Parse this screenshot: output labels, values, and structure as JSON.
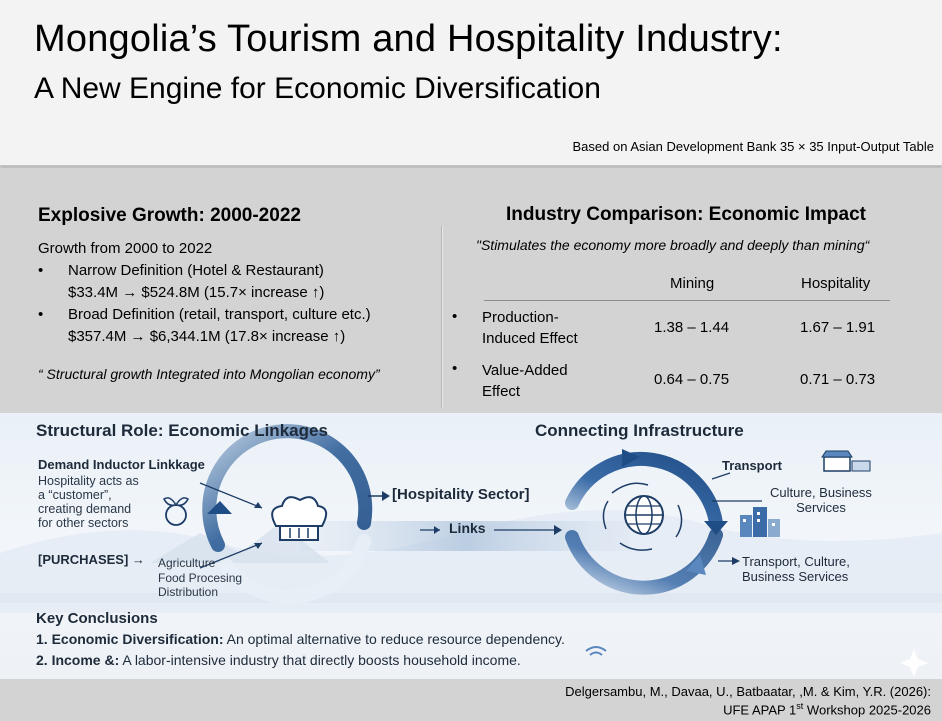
{
  "header": {
    "title": "Mongolia’s Tourism and Hospitality Industry:",
    "subtitle": "A New Engine for Economic Diversification",
    "source_note": "Based on Asian Development Bank 35 × 35 Input-Output Table"
  },
  "growth": {
    "title": "Explosive Growth: 2000-2022",
    "intro": "Growth from 2000 to 2022",
    "bullets": [
      {
        "line1": "Narrow Definition (Hotel & Restaurant)",
        "line2": "$33.4M → $524.8M (15.7× increase ↑)"
      },
      {
        "line1": "Broad Definition (retail, transport, culture etc.)",
        "line2": "$357.4M → $6,344.1M (17.8× increase ↑)"
      }
    ],
    "bullet_symbol": "•",
    "quote": "“ Structural growth Integrated into Mongolian economy”"
  },
  "comparison": {
    "title": "Industry Comparison: Economic Impact",
    "quote": "\"Stimulates the economy more broadly and deeply than mining“",
    "columns": [
      "Mining",
      "Hospitality"
    ],
    "rows": [
      {
        "label_line1": "Production-",
        "label_line2": "Induced Effect",
        "mining": "1.38 – 1.44",
        "hospitality": "1.67 – 1.91"
      },
      {
        "label_line1": "Value-Added",
        "label_line2": "Effect",
        "mining": "0.64 – 0.75",
        "hospitality": "0.71 – 0.73"
      }
    ]
  },
  "infographic": {
    "structural_title": "Structural Role: Economic Linkages",
    "connecting_title": "Connecting Infrastructure",
    "demand_title": "Demand Inductor Linkkage",
    "demand_desc": [
      "Hospitality acts as",
      "a “customer”,",
      "creating demand",
      "for other sectors"
    ],
    "purchases_label": "[PURCHASES] →",
    "purchases_items": [
      "Agriculture",
      "Food Procesing",
      "Distribution"
    ],
    "hospitality_sector": "[Hospitality Sector]",
    "links_label": "Links",
    "transport_label": "Transport",
    "culture_label": [
      "Culture, Business",
      "Services"
    ],
    "transport_culture": [
      "Transport, Culture,",
      "Business Services"
    ],
    "key_conclusions_title": "Key Conclusions",
    "conclusions": [
      {
        "head": "1. Economic Diversification:",
        "text": " An optimal alternative to reduce resource dependency."
      },
      {
        "head": "2. Income &:",
        "text": " A labor-intensive industry that directly boosts household income."
      }
    ],
    "icons": [
      "chef-hat-icon",
      "globe-icon",
      "agriculture-icon",
      "building-icon",
      "market-icon"
    ]
  },
  "footer": {
    "citation_line1": "Delgersambu, M., Davaa, U., Batbaatar, ,M. & Kim, Y.R. (2026):",
    "citation_line2_pre": "UFE APAP 1",
    "citation_line2_sup": "st",
    "citation_line2_post": " Workshop 2025-2026"
  }
}
